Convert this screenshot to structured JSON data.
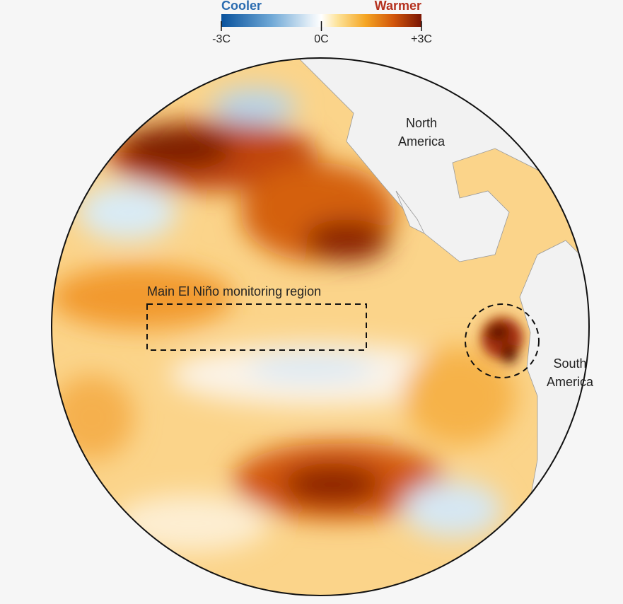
{
  "legend": {
    "low_label": "Cooler",
    "high_label": "Warmer",
    "ticks": [
      {
        "value": -3,
        "label": "-3C"
      },
      {
        "value": 0,
        "label": "0C"
      },
      {
        "value": 3,
        "label": "+3C"
      }
    ]
  },
  "labels": {
    "north_america": [
      "North",
      "America"
    ],
    "south_america": [
      "South",
      "America"
    ],
    "monitoring_region": "Main El Niño monitoring region"
  }
}
